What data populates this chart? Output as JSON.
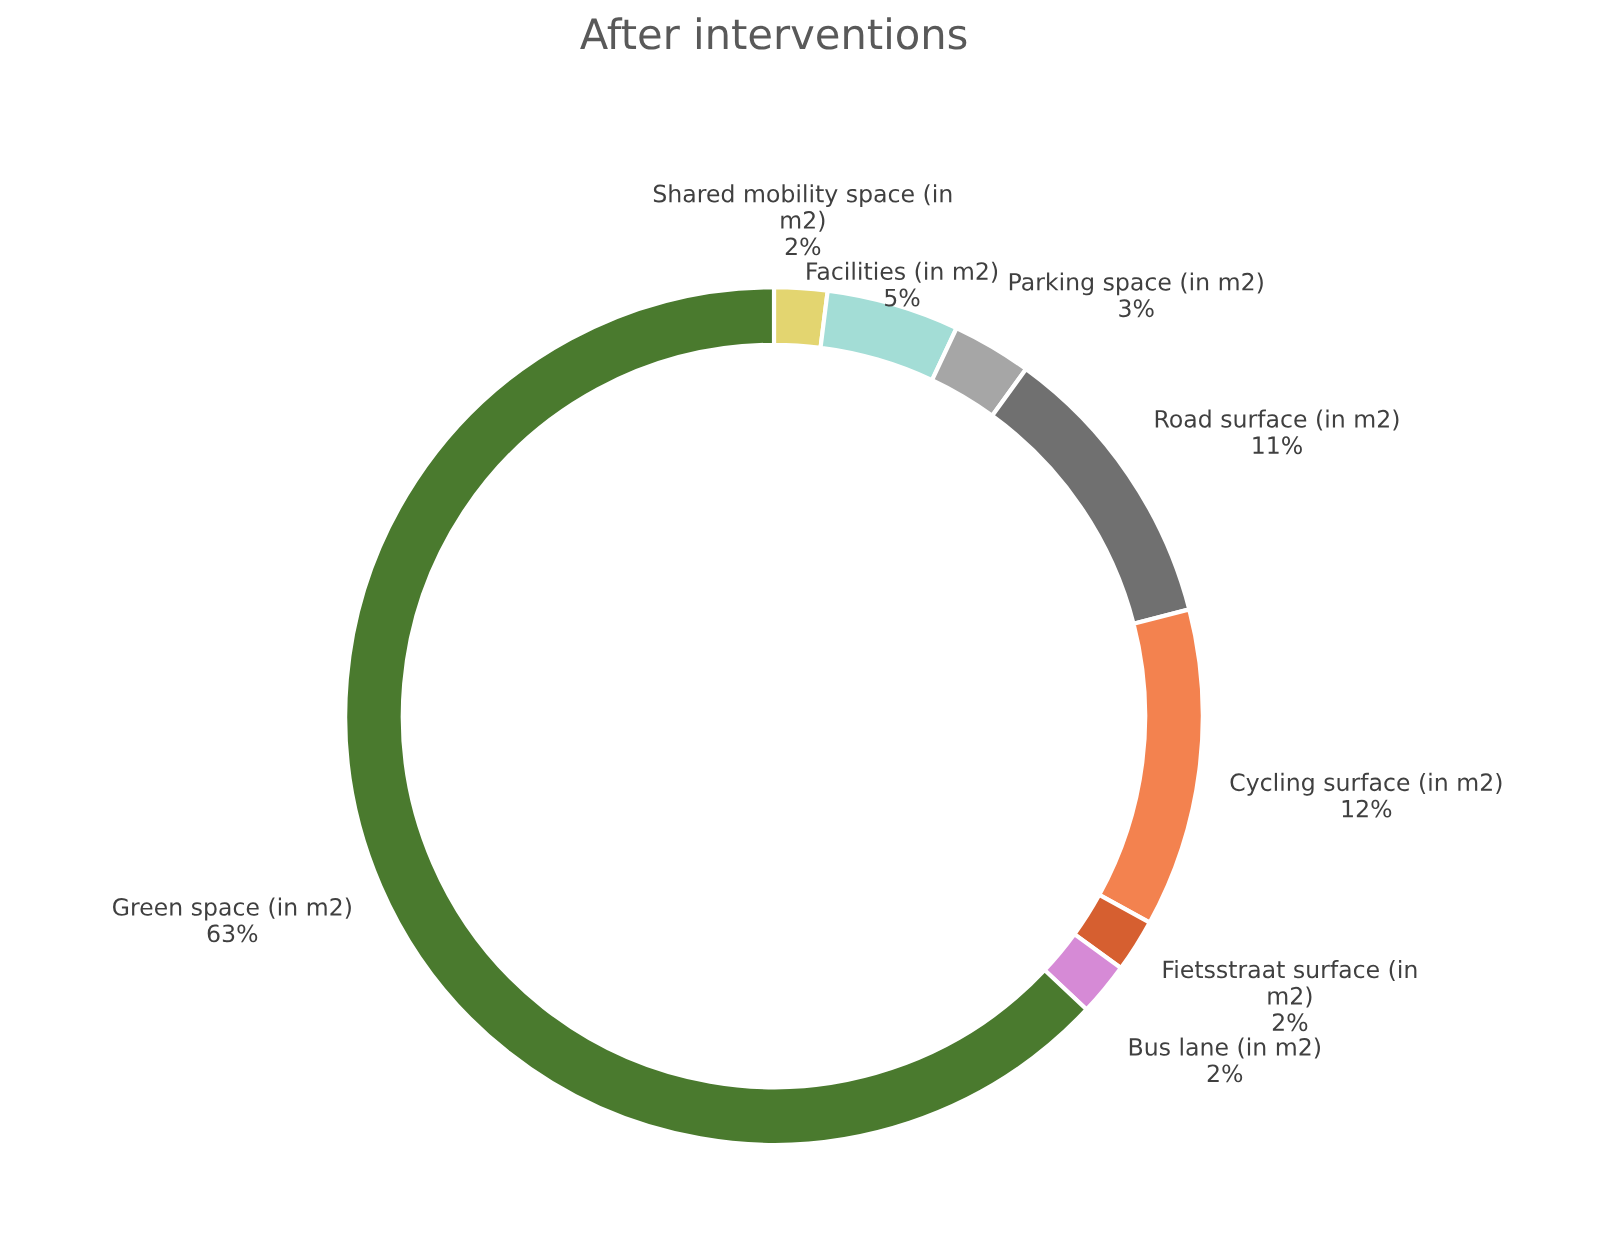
{
  "chart_data": {
    "type": "donut",
    "title": "After interventions",
    "categories": [
      "Shared mobility space (in m2)",
      "Facilities (in m2)",
      "Parking space (in m2)",
      "Road surface (in m2)",
      "Cycling surface (in m2)",
      "Fietsstraat surface (in m2)",
      "Bus lane (in m2)",
      "Green space (in m2)"
    ],
    "values": [
      2,
      5,
      3,
      11,
      12,
      2,
      2,
      63
    ],
    "value_labels": [
      "2%",
      "5%",
      "3%",
      "11%",
      "12%",
      "2%",
      "2%",
      "63%"
    ],
    "colors": [
      "#e3d570",
      "#a3ddd6",
      "#a6a6a6",
      "#707070",
      "#f3824f",
      "#d65f30",
      "#d68ad6",
      "#4a7a2e"
    ],
    "legend": false
  }
}
